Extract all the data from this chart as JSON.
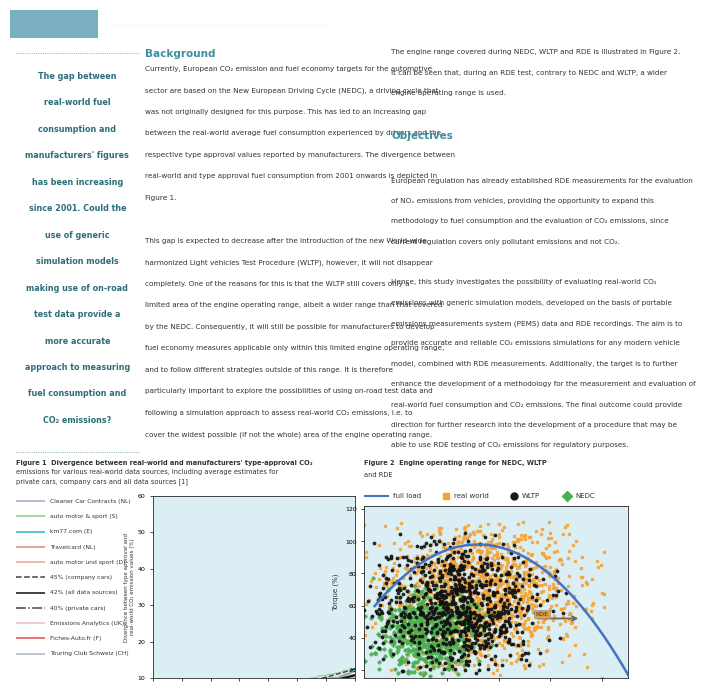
{
  "title_bar_color": "#5b9aaa",
  "header_line_color": "#5b9aaa",
  "background_color": "#ffffff",
  "header_box_color": "#7bafc0",
  "sidebar_dot_color": "#5b9aaa",
  "sidebar_title_color": "#2c6e7a",
  "body_text_color": "#333333",
  "heading_color": "#3a8fa0",
  "fig1_bg": "#daeef3",
  "fig2_bg": "#daeef3",
  "sidebar_lines": [
    "The gap between",
    "real-world fuel",
    "consumption and",
    "manufacturers' figures",
    "has been increasing",
    "since 2001. Could the",
    "use of generic",
    "simulation models",
    "making use of on-road",
    "test data provide a",
    "more accurate",
    "approach to measuring",
    "fuel consumption and",
    "CO₂ emissions?"
  ],
  "background_heading": "Background",
  "objectives_heading": "Objectives",
  "fig1_caption_lines": [
    "Figure 1  Divergence between real-world and manufacturers' type-approval CO₂",
    "emissions for various real-world data sources, including average estimates for",
    "private cars, company cars and all data sources [1]"
  ],
  "fig2_caption_lines": [
    "Figure 2  Engine operating range for NEDC, WLTP",
    "and RDE"
  ],
  "left_col_lines": [
    "Currently, European CO₂ emission and fuel economy targets for the automotive",
    "sector are based on the New European Driving Cycle (NEDC), a driving cycle that",
    "was not originally designed for this purpose. This has led to an increasing gap",
    "between the real-world average fuel consumption experienced by drivers and the",
    "respective type approval values reported by manufacturers. The divergence between",
    "real-world and type approval fuel consumption from 2001 onwards is depicted in",
    "Figure 1.",
    "",
    "This gap is expected to decrease after the introduction of the new World-wide",
    "harmonized Light vehicles Test Procedure (WLTP), however, it will not disappear",
    "completely. One of the reasons for this is that the WLTP still covers only a",
    "limited area of the engine operating range, albeit a wider range than that covered",
    "by the NEDC. Consequently, it will still be possible for manufacturers to develop",
    "fuel economy measures applicable only within this limited engine operating range,",
    "and to follow different strategies outside of this range. It is therefore",
    "particularly important to explore the possibilities of using on-road test data and",
    "following a simulation approach to assess real-world CO₂ emissions, i.e. to",
    "cover the widest possible (if not the whole) area of the engine operating range."
  ],
  "right_col_lines": [
    "The engine range covered during NEDC, WLTP and RDE is illustrated in Figure 2.",
    "It can be seen that, during an RDE test, contrary to NEDC and WLTP, a wider",
    "engine operating range is used.",
    "",
    "",
    "European regulation has already established RDE measurements for the evaluation",
    "of NOₓ emissions from vehicles, providing the opportunity to expand this",
    "methodology to fuel consumption and the evaluation of CO₂ emissions, since",
    "current regulation covers only pollutant emissions and not CO₂.",
    "",
    "Hence, this study investigates the possibility of evaluating real-world CO₂",
    "emissions with generic simulation models, developed on the basis of portable",
    "emissions measurements system (PEMS) data and RDE recordings. The aim is to",
    "provide accurate and reliable CO₂ emissions simulations for any modern vehicle",
    "model, combined with RDE measurements. Additionally, the target is to further",
    "enhance the development of a methodology for the measurement and evaluation of",
    "real-world fuel consumption and CO₂ emissions. The final outcome could provide",
    "direction for further research into the development of a procedure that may be",
    "able to use RDE testing of CO₂ emissions for regulatory purposes."
  ],
  "objectives_line_index": 4,
  "legend1": [
    {
      "label": "Cleaner Car Contracts (NL)",
      "color": "#b0a0c8",
      "ls": "-"
    },
    {
      "label": "auto motor & sport (S)",
      "color": "#90c890",
      "ls": "-"
    },
    {
      "label": "km77.com (E)",
      "color": "#30b8c8",
      "ls": "-"
    },
    {
      "label": "Travelcard (NL)",
      "color": "#e08888",
      "ls": "-"
    },
    {
      "label": "auto motor und sport (D)",
      "color": "#e8a888",
      "ls": "-"
    },
    {
      "label": "45% (company cars)",
      "color": "#444444",
      "ls": "--"
    },
    {
      "label": "42% (all data sources)",
      "color": "#111111",
      "ls": "-"
    },
    {
      "label": "40% (private cars)",
      "color": "#444444",
      "ls": "-."
    },
    {
      "label": "Emissions Analytics (UK)",
      "color": "#e8c0c0",
      "ls": "-"
    },
    {
      "label": "Fiches-Auto.fr (F)",
      "color": "#e05050",
      "ls": "-"
    },
    {
      "label": "Touring Club Schweiz (CH)",
      "color": "#a8b8c8",
      "ls": "-"
    }
  ]
}
